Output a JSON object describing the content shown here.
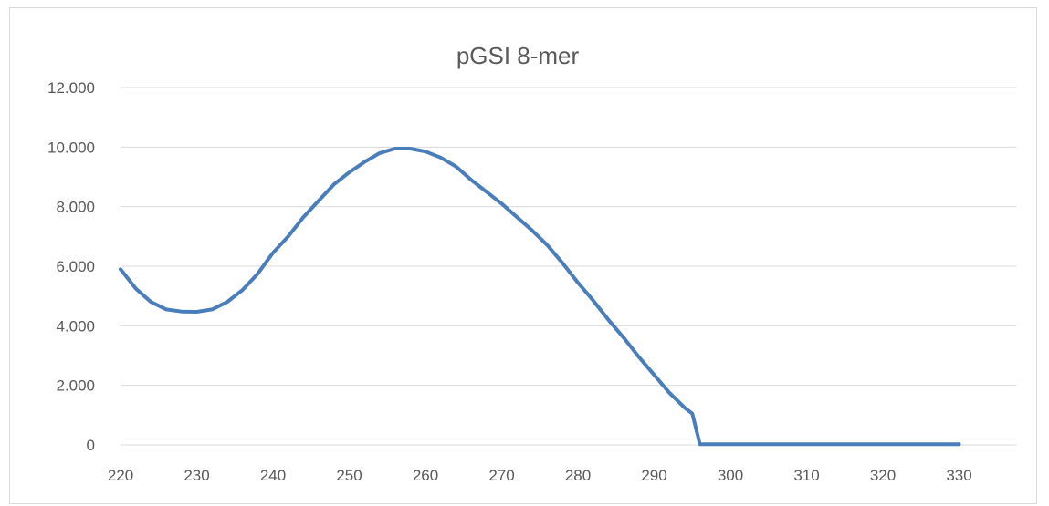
{
  "chart_data": {
    "type": "line",
    "title": "pGSI 8-mer",
    "xlabel": "",
    "ylabel": "",
    "xlim": [
      220,
      330
    ],
    "ylim": [
      0,
      12
    ],
    "x_ticks": [
      "220",
      "230",
      "240",
      "250",
      "260",
      "270",
      "280",
      "290",
      "300",
      "310",
      "320",
      "330"
    ],
    "x_tick_values": [
      220,
      230,
      240,
      250,
      260,
      270,
      280,
      290,
      300,
      310,
      320,
      330
    ],
    "y_ticks": [
      "0",
      "2.000",
      "4.000",
      "6.000",
      "8.000",
      "10.000",
      "12.000"
    ],
    "y_tick_values": [
      0,
      2,
      4,
      6,
      8,
      10,
      12
    ],
    "grid": true,
    "legend": "none",
    "colors": {
      "series": "#4a7ebb",
      "grid": "#d9d9d9",
      "text": "#595959"
    },
    "series": [
      {
        "x": [
          220,
          222,
          224,
          226,
          228,
          230,
          232,
          234,
          236,
          238,
          240,
          242,
          244,
          246,
          248,
          250,
          252,
          254,
          256,
          258,
          260,
          262,
          264,
          266,
          268,
          270,
          272,
          274,
          276,
          278,
          280,
          282,
          284,
          286,
          288,
          290,
          292,
          294,
          295,
          296,
          298,
          300,
          305,
          310,
          315,
          320,
          325,
          330
        ],
        "values": [
          5.9,
          5.25,
          4.8,
          4.55,
          4.48,
          4.47,
          4.55,
          4.8,
          5.2,
          5.75,
          6.45,
          7.0,
          7.65,
          8.2,
          8.75,
          9.15,
          9.5,
          9.8,
          9.95,
          9.95,
          9.85,
          9.65,
          9.35,
          8.9,
          8.5,
          8.1,
          7.65,
          7.2,
          6.7,
          6.1,
          5.45,
          4.85,
          4.2,
          3.6,
          2.95,
          2.35,
          1.75,
          1.25,
          1.05,
          0.02,
          0.02,
          0.02,
          0.02,
          0.02,
          0.02,
          0.02,
          0.02,
          0.02
        ]
      }
    ]
  }
}
